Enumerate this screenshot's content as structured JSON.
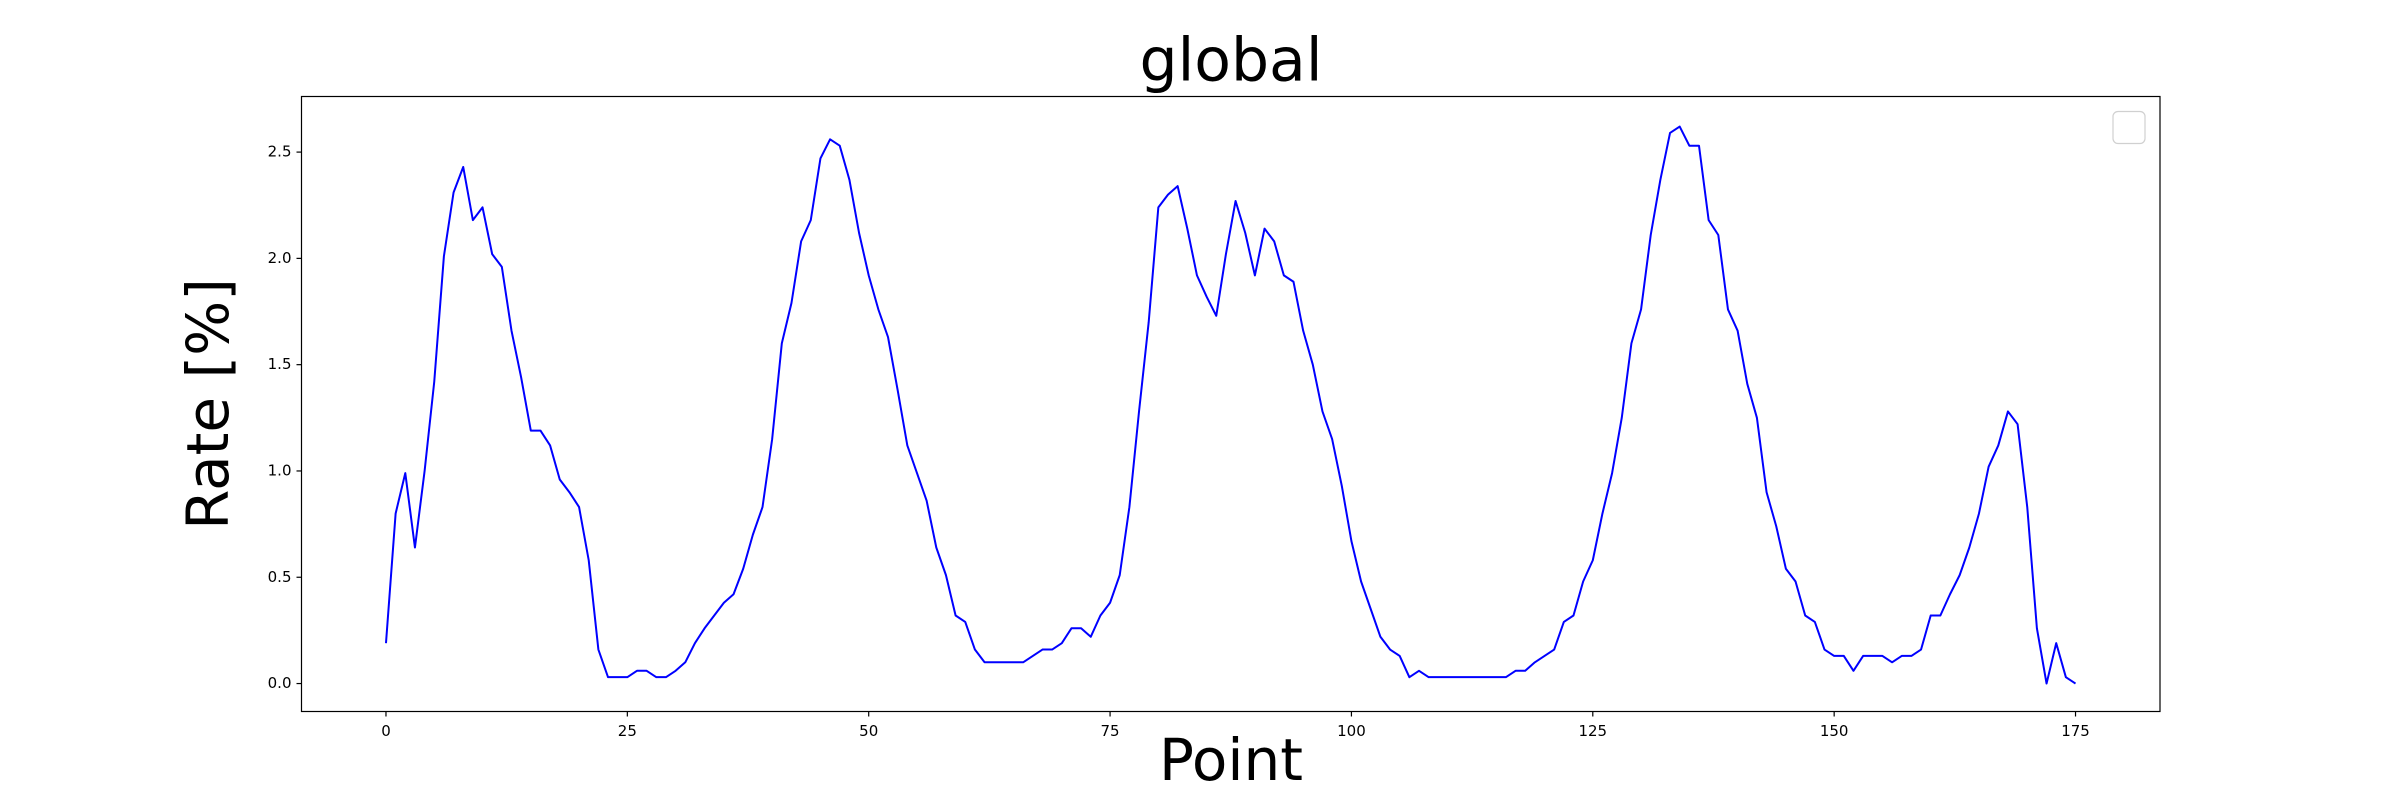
{
  "chart_data": {
    "type": "line",
    "title": "global",
    "xlabel": "Point",
    "ylabel": "Rate [%]",
    "x": [
      0,
      1,
      2,
      3,
      4,
      5,
      6,
      7,
      8,
      9,
      10,
      11,
      12,
      13,
      14,
      15,
      16,
      17,
      18,
      19,
      20,
      21,
      22,
      23,
      24,
      25,
      26,
      27,
      28,
      29,
      30,
      31,
      32,
      33,
      34,
      35,
      36,
      37,
      38,
      39,
      40,
      41,
      42,
      43,
      44,
      45,
      46,
      47,
      48,
      49,
      50,
      51,
      52,
      53,
      54,
      55,
      56,
      57,
      58,
      59,
      60,
      61,
      62,
      63,
      64,
      65,
      66,
      67,
      68,
      69,
      70,
      71,
      72,
      73,
      74,
      75,
      76,
      77,
      78,
      79,
      80,
      81,
      82,
      83,
      84,
      85,
      86,
      87,
      88,
      89,
      90,
      91,
      92,
      93,
      94,
      95,
      96,
      97,
      98,
      99,
      100,
      101,
      102,
      103,
      104,
      105,
      106,
      107,
      108,
      109,
      110,
      111,
      112,
      113,
      114,
      115,
      116,
      117,
      118,
      119,
      120,
      121,
      122,
      123,
      124,
      125,
      126,
      127,
      128,
      129,
      130,
      131,
      132,
      133,
      134,
      135,
      136,
      137,
      138,
      139,
      140,
      141,
      142,
      143,
      144,
      145,
      146,
      147,
      148,
      149,
      150,
      151,
      152,
      153,
      154,
      155,
      156,
      157,
      158,
      159,
      160,
      161,
      162,
      163,
      164,
      165,
      166,
      167,
      168,
      169,
      170,
      171,
      172,
      173,
      174,
      175
    ],
    "series": [
      {
        "color": "#0000ff",
        "values": [
          0.19,
          0.8,
          0.99,
          0.64,
          1.0,
          1.42,
          2.01,
          2.31,
          2.43,
          2.18,
          2.24,
          2.02,
          1.96,
          1.66,
          1.44,
          1.19,
          1.19,
          1.12,
          0.96,
          0.9,
          0.83,
          0.58,
          0.16,
          0.03,
          0.03,
          0.03,
          0.06,
          0.06,
          0.03,
          0.03,
          0.06,
          0.1,
          0.19,
          0.26,
          0.32,
          0.38,
          0.42,
          0.54,
          0.7,
          0.83,
          1.15,
          1.6,
          1.79,
          2.08,
          2.18,
          2.47,
          2.56,
          2.53,
          2.37,
          2.12,
          1.92,
          1.76,
          1.63,
          1.38,
          1.12,
          0.99,
          0.86,
          0.64,
          0.51,
          0.32,
          0.29,
          0.16,
          0.1,
          0.1,
          0.1,
          0.1,
          0.1,
          0.13,
          0.16,
          0.16,
          0.19,
          0.26,
          0.26,
          0.22,
          0.32,
          0.38,
          0.51,
          0.83,
          1.28,
          1.7,
          2.24,
          2.3,
          2.34,
          2.14,
          1.92,
          1.82,
          1.73,
          2.02,
          2.27,
          2.12,
          1.92,
          2.14,
          2.08,
          1.92,
          1.89,
          1.66,
          1.5,
          1.28,
          1.15,
          0.93,
          0.67,
          0.48,
          0.35,
          0.22,
          0.16,
          0.13,
          0.03,
          0.06,
          0.03,
          0.03,
          0.03,
          0.03,
          0.03,
          0.03,
          0.03,
          0.03,
          0.03,
          0.06,
          0.06,
          0.1,
          0.13,
          0.16,
          0.29,
          0.32,
          0.48,
          0.58,
          0.8,
          0.99,
          1.25,
          1.6,
          1.76,
          2.11,
          2.37,
          2.59,
          2.62,
          2.53,
          2.53,
          2.18,
          2.11,
          1.76,
          1.66,
          1.41,
          1.25,
          0.9,
          0.74,
          0.54,
          0.48,
          0.32,
          0.29,
          0.16,
          0.13,
          0.13,
          0.06,
          0.13,
          0.13,
          0.13,
          0.1,
          0.13,
          0.13,
          0.16,
          0.32,
          0.32,
          0.42,
          0.51,
          0.64,
          0.8,
          1.02,
          1.12,
          1.28,
          1.22,
          0.83,
          0.26,
          0.0,
          0.19,
          0.03,
          0.0
        ]
      }
    ],
    "xlim": [
      -8.75,
      183.75
    ],
    "xticks": [
      0,
      25,
      50,
      75,
      100,
      125,
      150,
      175
    ],
    "ylim": [
      -0.1315,
      2.7615
    ],
    "yticks": [
      {
        "value": 0,
        "label": "0.0"
      },
      0.5,
      {
        "value": 1,
        "label": "1.0"
      },
      1.5,
      {
        "value": 2,
        "label": "2.0"
      },
      2.5
    ],
    "legend": "upper right"
  }
}
